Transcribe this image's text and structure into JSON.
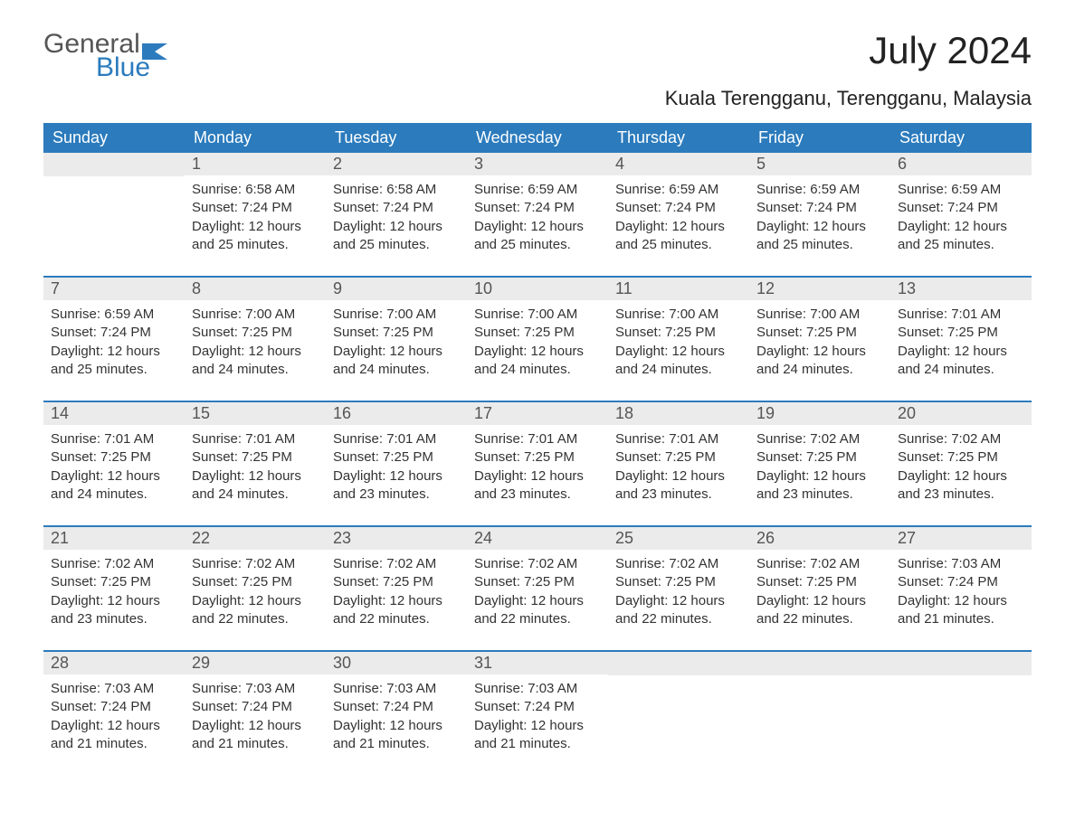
{
  "logo": {
    "text1": "General",
    "text2": "Blue"
  },
  "title": "July 2024",
  "location": "Kuala Terengganu, Terengganu, Malaysia",
  "colors": {
    "header_bg": "#2b7bbd",
    "header_text": "#ffffff",
    "daynum_bg": "#ebebeb",
    "row_border": "#2b7bbd"
  },
  "weekdays": [
    "Sunday",
    "Monday",
    "Tuesday",
    "Wednesday",
    "Thursday",
    "Friday",
    "Saturday"
  ],
  "labels": {
    "sunrise": "Sunrise:",
    "sunset": "Sunset:",
    "daylight": "Daylight:"
  },
  "weeks": [
    [
      null,
      {
        "n": "1",
        "sr": "6:58 AM",
        "ss": "7:24 PM",
        "dl": "12 hours and 25 minutes."
      },
      {
        "n": "2",
        "sr": "6:58 AM",
        "ss": "7:24 PM",
        "dl": "12 hours and 25 minutes."
      },
      {
        "n": "3",
        "sr": "6:59 AM",
        "ss": "7:24 PM",
        "dl": "12 hours and 25 minutes."
      },
      {
        "n": "4",
        "sr": "6:59 AM",
        "ss": "7:24 PM",
        "dl": "12 hours and 25 minutes."
      },
      {
        "n": "5",
        "sr": "6:59 AM",
        "ss": "7:24 PM",
        "dl": "12 hours and 25 minutes."
      },
      {
        "n": "6",
        "sr": "6:59 AM",
        "ss": "7:24 PM",
        "dl": "12 hours and 25 minutes."
      }
    ],
    [
      {
        "n": "7",
        "sr": "6:59 AM",
        "ss": "7:24 PM",
        "dl": "12 hours and 25 minutes."
      },
      {
        "n": "8",
        "sr": "7:00 AM",
        "ss": "7:25 PM",
        "dl": "12 hours and 24 minutes."
      },
      {
        "n": "9",
        "sr": "7:00 AM",
        "ss": "7:25 PM",
        "dl": "12 hours and 24 minutes."
      },
      {
        "n": "10",
        "sr": "7:00 AM",
        "ss": "7:25 PM",
        "dl": "12 hours and 24 minutes."
      },
      {
        "n": "11",
        "sr": "7:00 AM",
        "ss": "7:25 PM",
        "dl": "12 hours and 24 minutes."
      },
      {
        "n": "12",
        "sr": "7:00 AM",
        "ss": "7:25 PM",
        "dl": "12 hours and 24 minutes."
      },
      {
        "n": "13",
        "sr": "7:01 AM",
        "ss": "7:25 PM",
        "dl": "12 hours and 24 minutes."
      }
    ],
    [
      {
        "n": "14",
        "sr": "7:01 AM",
        "ss": "7:25 PM",
        "dl": "12 hours and 24 minutes."
      },
      {
        "n": "15",
        "sr": "7:01 AM",
        "ss": "7:25 PM",
        "dl": "12 hours and 24 minutes."
      },
      {
        "n": "16",
        "sr": "7:01 AM",
        "ss": "7:25 PM",
        "dl": "12 hours and 23 minutes."
      },
      {
        "n": "17",
        "sr": "7:01 AM",
        "ss": "7:25 PM",
        "dl": "12 hours and 23 minutes."
      },
      {
        "n": "18",
        "sr": "7:01 AM",
        "ss": "7:25 PM",
        "dl": "12 hours and 23 minutes."
      },
      {
        "n": "19",
        "sr": "7:02 AM",
        "ss": "7:25 PM",
        "dl": "12 hours and 23 minutes."
      },
      {
        "n": "20",
        "sr": "7:02 AM",
        "ss": "7:25 PM",
        "dl": "12 hours and 23 minutes."
      }
    ],
    [
      {
        "n": "21",
        "sr": "7:02 AM",
        "ss": "7:25 PM",
        "dl": "12 hours and 23 minutes."
      },
      {
        "n": "22",
        "sr": "7:02 AM",
        "ss": "7:25 PM",
        "dl": "12 hours and 22 minutes."
      },
      {
        "n": "23",
        "sr": "7:02 AM",
        "ss": "7:25 PM",
        "dl": "12 hours and 22 minutes."
      },
      {
        "n": "24",
        "sr": "7:02 AM",
        "ss": "7:25 PM",
        "dl": "12 hours and 22 minutes."
      },
      {
        "n": "25",
        "sr": "7:02 AM",
        "ss": "7:25 PM",
        "dl": "12 hours and 22 minutes."
      },
      {
        "n": "26",
        "sr": "7:02 AM",
        "ss": "7:25 PM",
        "dl": "12 hours and 22 minutes."
      },
      {
        "n": "27",
        "sr": "7:03 AM",
        "ss": "7:24 PM",
        "dl": "12 hours and 21 minutes."
      }
    ],
    [
      {
        "n": "28",
        "sr": "7:03 AM",
        "ss": "7:24 PM",
        "dl": "12 hours and 21 minutes."
      },
      {
        "n": "29",
        "sr": "7:03 AM",
        "ss": "7:24 PM",
        "dl": "12 hours and 21 minutes."
      },
      {
        "n": "30",
        "sr": "7:03 AM",
        "ss": "7:24 PM",
        "dl": "12 hours and 21 minutes."
      },
      {
        "n": "31",
        "sr": "7:03 AM",
        "ss": "7:24 PM",
        "dl": "12 hours and 21 minutes."
      },
      null,
      null,
      null
    ]
  ]
}
